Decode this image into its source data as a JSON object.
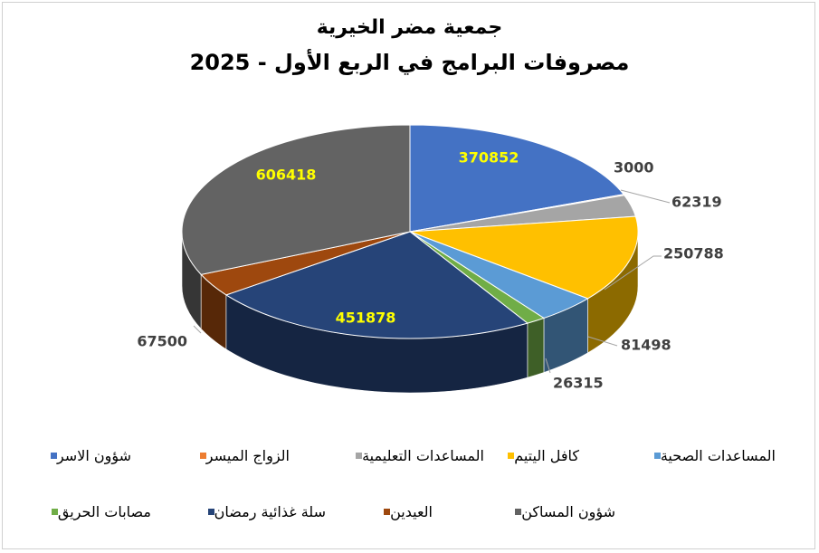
{
  "chart_data": {
    "type": "pie",
    "title": "جمعية مضر الخيرية",
    "subtitle": "مصروفات البرامج في الربع الأول - 2025",
    "slices": [
      {
        "label": "شؤون الاسر",
        "value": 370852,
        "color": "#4472C4"
      },
      {
        "label": "الزواج الميسر",
        "value": 3000,
        "color": "#ED7D31"
      },
      {
        "label": "المساعدات التعليمية",
        "value": 62319,
        "color": "#A5A5A5"
      },
      {
        "label": "كافل اليتيم",
        "value": 250788,
        "color": "#FFC000"
      },
      {
        "label": "المساعدات الصحية",
        "value": 81498,
        "color": "#5B9BD5"
      },
      {
        "label": "مصابات الحريق",
        "value": 26315,
        "color": "#70AD47"
      },
      {
        "label": "سلة غذائية رمضان",
        "value": 451878,
        "color": "#264478"
      },
      {
        "label": "العيدين",
        "value": 67500,
        "color": "#9E480E"
      },
      {
        "label": "شؤون المساكن",
        "value": 606418,
        "color": "#636363"
      }
    ],
    "legend_position": "bottom"
  }
}
